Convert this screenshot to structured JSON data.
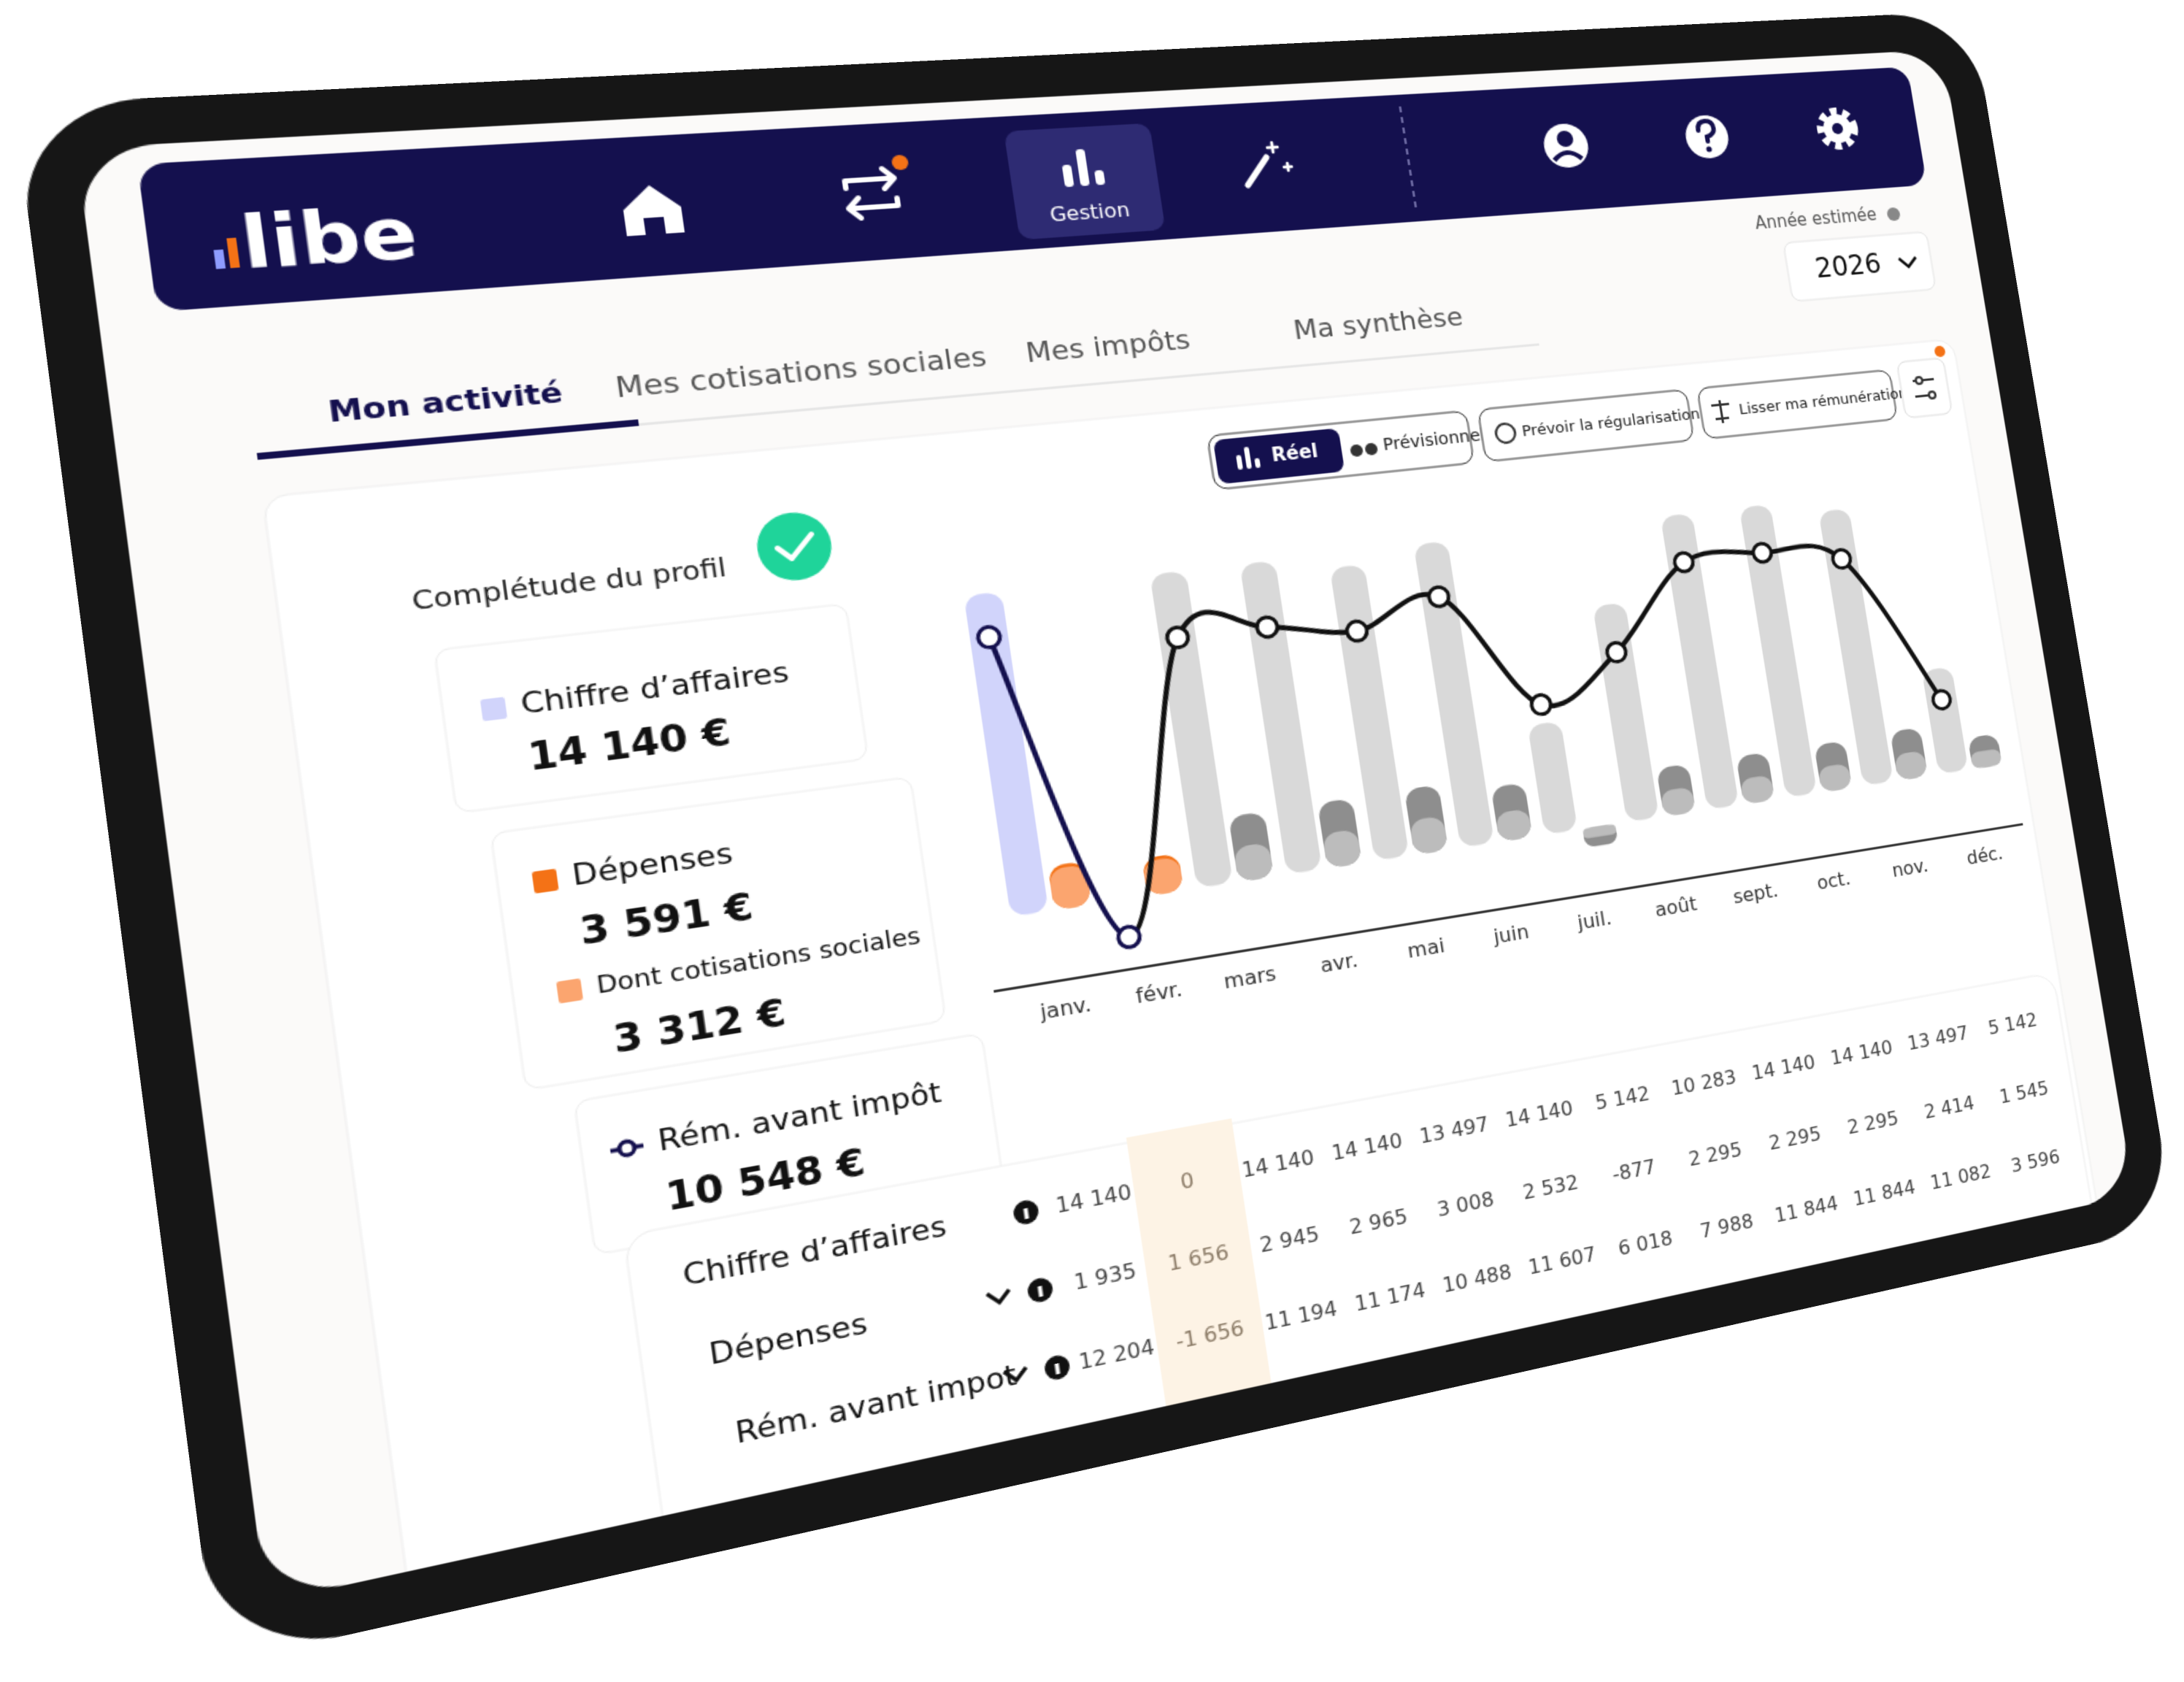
{
  "nav": {
    "logo": "libe",
    "active": "Gestion"
  },
  "year": {
    "label": "Année estimée",
    "value": "2026"
  },
  "tabs": [
    "Mon activité",
    "Mes cotisations sociales",
    "Mes impôts",
    "Ma synthèse"
  ],
  "active_tab": 0,
  "toolbar": {
    "real": "Réel",
    "forecast": "Prévisionnel",
    "regularize": "Prévoir la régularisation",
    "smooth": "Lisser ma rémunération"
  },
  "profile": "Complétude du profil",
  "summary": {
    "revenue": "14 140 €",
    "expenses": "3 591 €",
    "contributions": "3 312 €",
    "income": "10 548 €"
  },
  "chart_data": {
    "type": "bar",
    "categories": [
      "janv.",
      "févr.",
      "mars",
      "avr.",
      "mai",
      "juin",
      "juil.",
      "août",
      "sept.",
      "oct.",
      "nov.",
      "déc."
    ],
    "ylim": [
      -2500,
      15500
    ],
    "series": [
      {
        "name": "Chiffre d’affaires",
        "values": [
          14140,
          0,
          14140,
          14140,
          13497,
          14140,
          5142,
          10283,
          14140,
          14140,
          13497,
          5142
        ],
        "value_labels": [
          "14 140",
          "0",
          "14 140",
          "14 140",
          "13 497",
          "14 140",
          "5 142",
          "10 283",
          "14 140",
          "14 140",
          "13 497",
          "5 142"
        ],
        "colors": [
          "#d1d4fb",
          "#d1d4fb",
          "#d9d9d9",
          "#d9d9d9",
          "#d9d9d9",
          "#d9d9d9",
          "#d9d9d9",
          "#d9d9d9",
          "#d9d9d9",
          "#d9d9d9",
          "#d9d9d9",
          "#d9d9d9"
        ]
      },
      {
        "name": "Dépenses",
        "values": [
          1935,
          1656,
          2945,
          2965,
          3008,
          2532,
          -877,
          2295,
          2295,
          2295,
          2414,
          1545
        ],
        "value_labels": [
          "1 935",
          "1 656",
          "2 945",
          "2 965",
          "3 008",
          "2 532",
          "-877",
          "2 295",
          "2 295",
          "2 295",
          "2 414",
          "1 545"
        ],
        "colors": [
          "#f47216",
          "#f47216",
          "#8e8e8e",
          "#8e8e8e",
          "#8e8e8e",
          "#8e8e8e",
          "#8e8e8e",
          "#8e8e8e",
          "#8e8e8e",
          "#8e8e8e",
          "#8e8e8e",
          "#8e8e8e"
        ]
      },
      {
        "name": "Dont cotisations sociales",
        "values": [
          1790,
          1522,
          1550,
          1560,
          1580,
          1330,
          -460,
          1200,
          1200,
          1200,
          1270,
          810
        ],
        "colors": [
          "#fba56f",
          "#fba56f",
          "#bcbcbc",
          "#bcbcbc",
          "#bcbcbc",
          "#bcbcbc",
          "#bcbcbc",
          "#bcbcbc",
          "#bcbcbc",
          "#bcbcbc",
          "#bcbcbc",
          "#bcbcbc"
        ]
      },
      {
        "name": "Rém. avant impôt",
        "values": [
          12204,
          -1656,
          11194,
          11174,
          10488,
          11607,
          6018,
          7988,
          11844,
          11844,
          11082,
          3596
        ],
        "value_labels": [
          "12 204",
          "-1 656",
          "11 194",
          "11 174",
          "10 488",
          "11 607",
          "6 018",
          "7 988",
          "11 844",
          "11 844",
          "11 082",
          "3 596"
        ],
        "colors": [
          "#14104e",
          "#14104e",
          "#111111",
          "#111111",
          "#111111",
          "#111111",
          "#111111",
          "#111111",
          "#111111",
          "#111111",
          "#111111",
          "#111111"
        ]
      }
    ]
  },
  "table": {
    "income_label": "Rém. avant impot",
    "highlight": 1
  }
}
